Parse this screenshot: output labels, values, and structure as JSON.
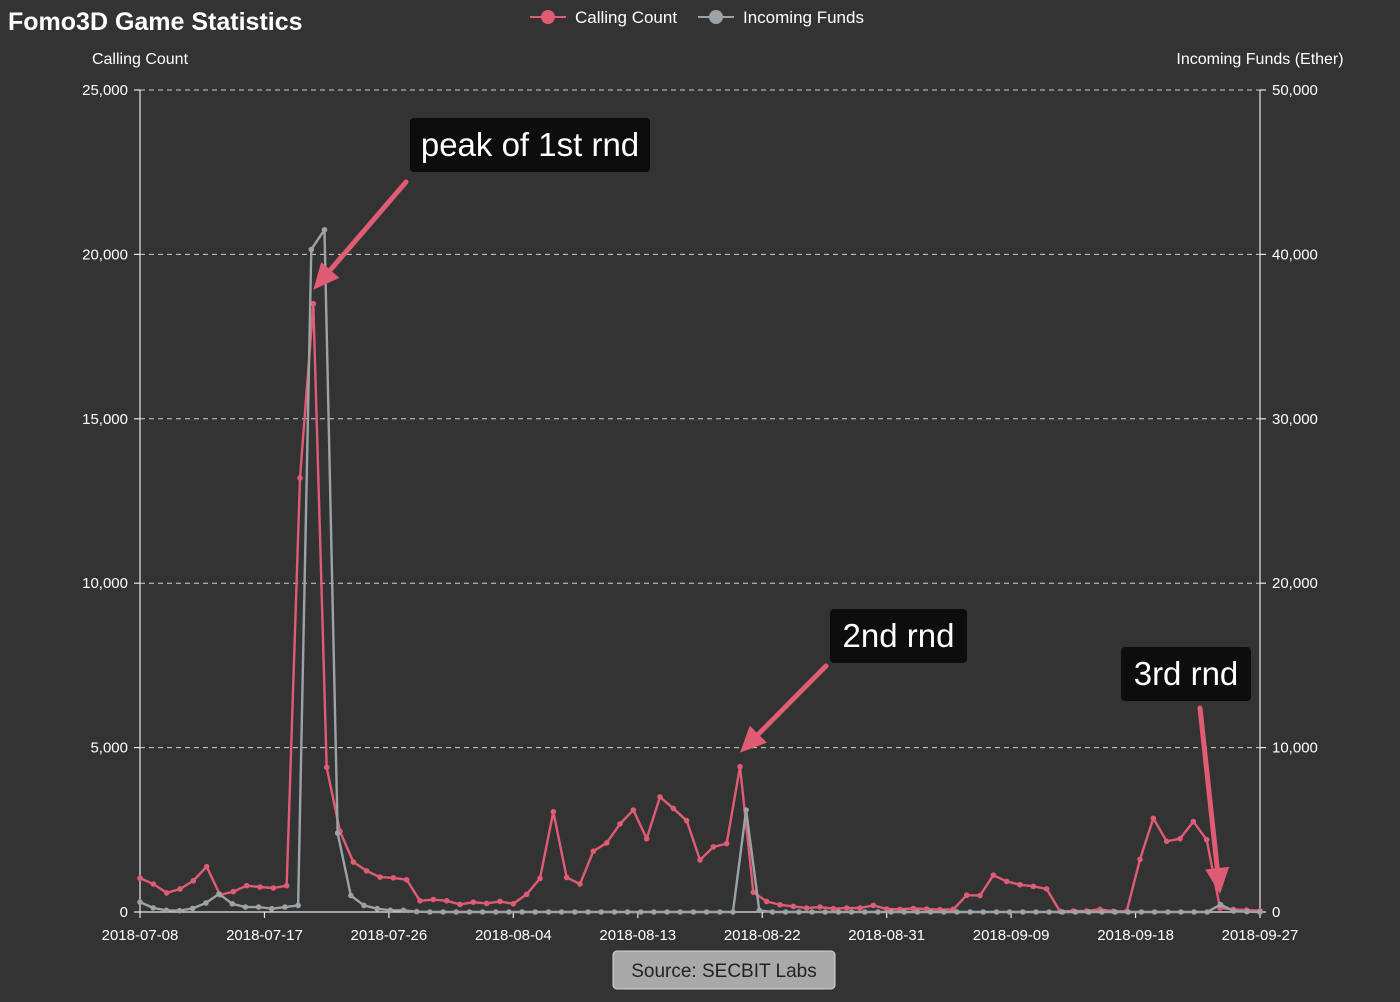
{
  "title": "Fomo3D Game Statistics",
  "source_label": "Source: SECBIT Labs",
  "chart_data": {
    "type": "line",
    "legend": {
      "position": "top-center"
    },
    "grid": true,
    "x_labels": [
      "2018-07-08",
      "2018-07-17",
      "2018-07-26",
      "2018-08-04",
      "2018-08-13",
      "2018-08-22",
      "2018-08-31",
      "2018-09-09",
      "2018-09-18",
      "2018-09-27"
    ],
    "y_left": {
      "label": "Calling Count",
      "min": 0,
      "max": 25000,
      "ticks": [
        "0",
        "5,000",
        "10,000",
        "15,000",
        "20,000",
        "25,000"
      ]
    },
    "y_right": {
      "label": "Incoming Funds (Ether)",
      "min": 0,
      "max": 50000,
      "ticks": [
        "0",
        "10,000",
        "20,000",
        "30,000",
        "40,000",
        "50,000"
      ]
    },
    "series": [
      {
        "name": "Calling Count",
        "axis": "left",
        "color": "#e05c75",
        "values": [
          1030,
          850,
          580,
          700,
          950,
          1380,
          520,
          620,
          800,
          760,
          730,
          800,
          13200,
          18500,
          4400,
          2450,
          1520,
          1250,
          1060,
          1040,
          980,
          340,
          380,
          340,
          230,
          300,
          260,
          320,
          250,
          540,
          1020,
          3050,
          1050,
          850,
          1850,
          2100,
          2680,
          3100,
          2230,
          3500,
          3150,
          2780,
          1580,
          1980,
          2080,
          4420,
          600,
          320,
          220,
          170,
          120,
          150,
          100,
          120,
          120,
          200,
          90,
          80,
          110,
          90,
          70,
          80,
          510,
          500,
          1120,
          930,
          830,
          780,
          700,
          20,
          30,
          30,
          80,
          20,
          20,
          1600,
          2850,
          2150,
          2230,
          2750,
          2200,
          120,
          80,
          60,
          40
        ]
      },
      {
        "name": "Incoming Funds",
        "axis": "right",
        "color": "#9ba3a6",
        "values": [
          600,
          250,
          100,
          80,
          220,
          550,
          1100,
          500,
          300,
          300,
          200,
          300,
          400,
          40300,
          41500,
          4800,
          1000,
          400,
          200,
          100,
          100,
          20,
          0,
          0,
          0,
          0,
          0,
          0,
          0,
          0,
          0,
          0,
          0,
          0,
          0,
          0,
          0,
          0,
          0,
          0,
          0,
          0,
          0,
          0,
          0,
          0,
          6200,
          100,
          0,
          0,
          0,
          0,
          0,
          0,
          0,
          0,
          0,
          0,
          0,
          0,
          0,
          0,
          0,
          0,
          0,
          0,
          0,
          0,
          0,
          0,
          0,
          0,
          0,
          0,
          0,
          0,
          0,
          0,
          0,
          0,
          0,
          0,
          450,
          60,
          20,
          0
        ]
      }
    ],
    "annotations": [
      {
        "text": "peak of 1st rnd",
        "series": 0,
        "point": 13
      },
      {
        "text": "2nd rnd",
        "series": 0,
        "point": 45
      },
      {
        "text": "3rd rnd",
        "series": 0,
        "point": 81
      }
    ]
  }
}
